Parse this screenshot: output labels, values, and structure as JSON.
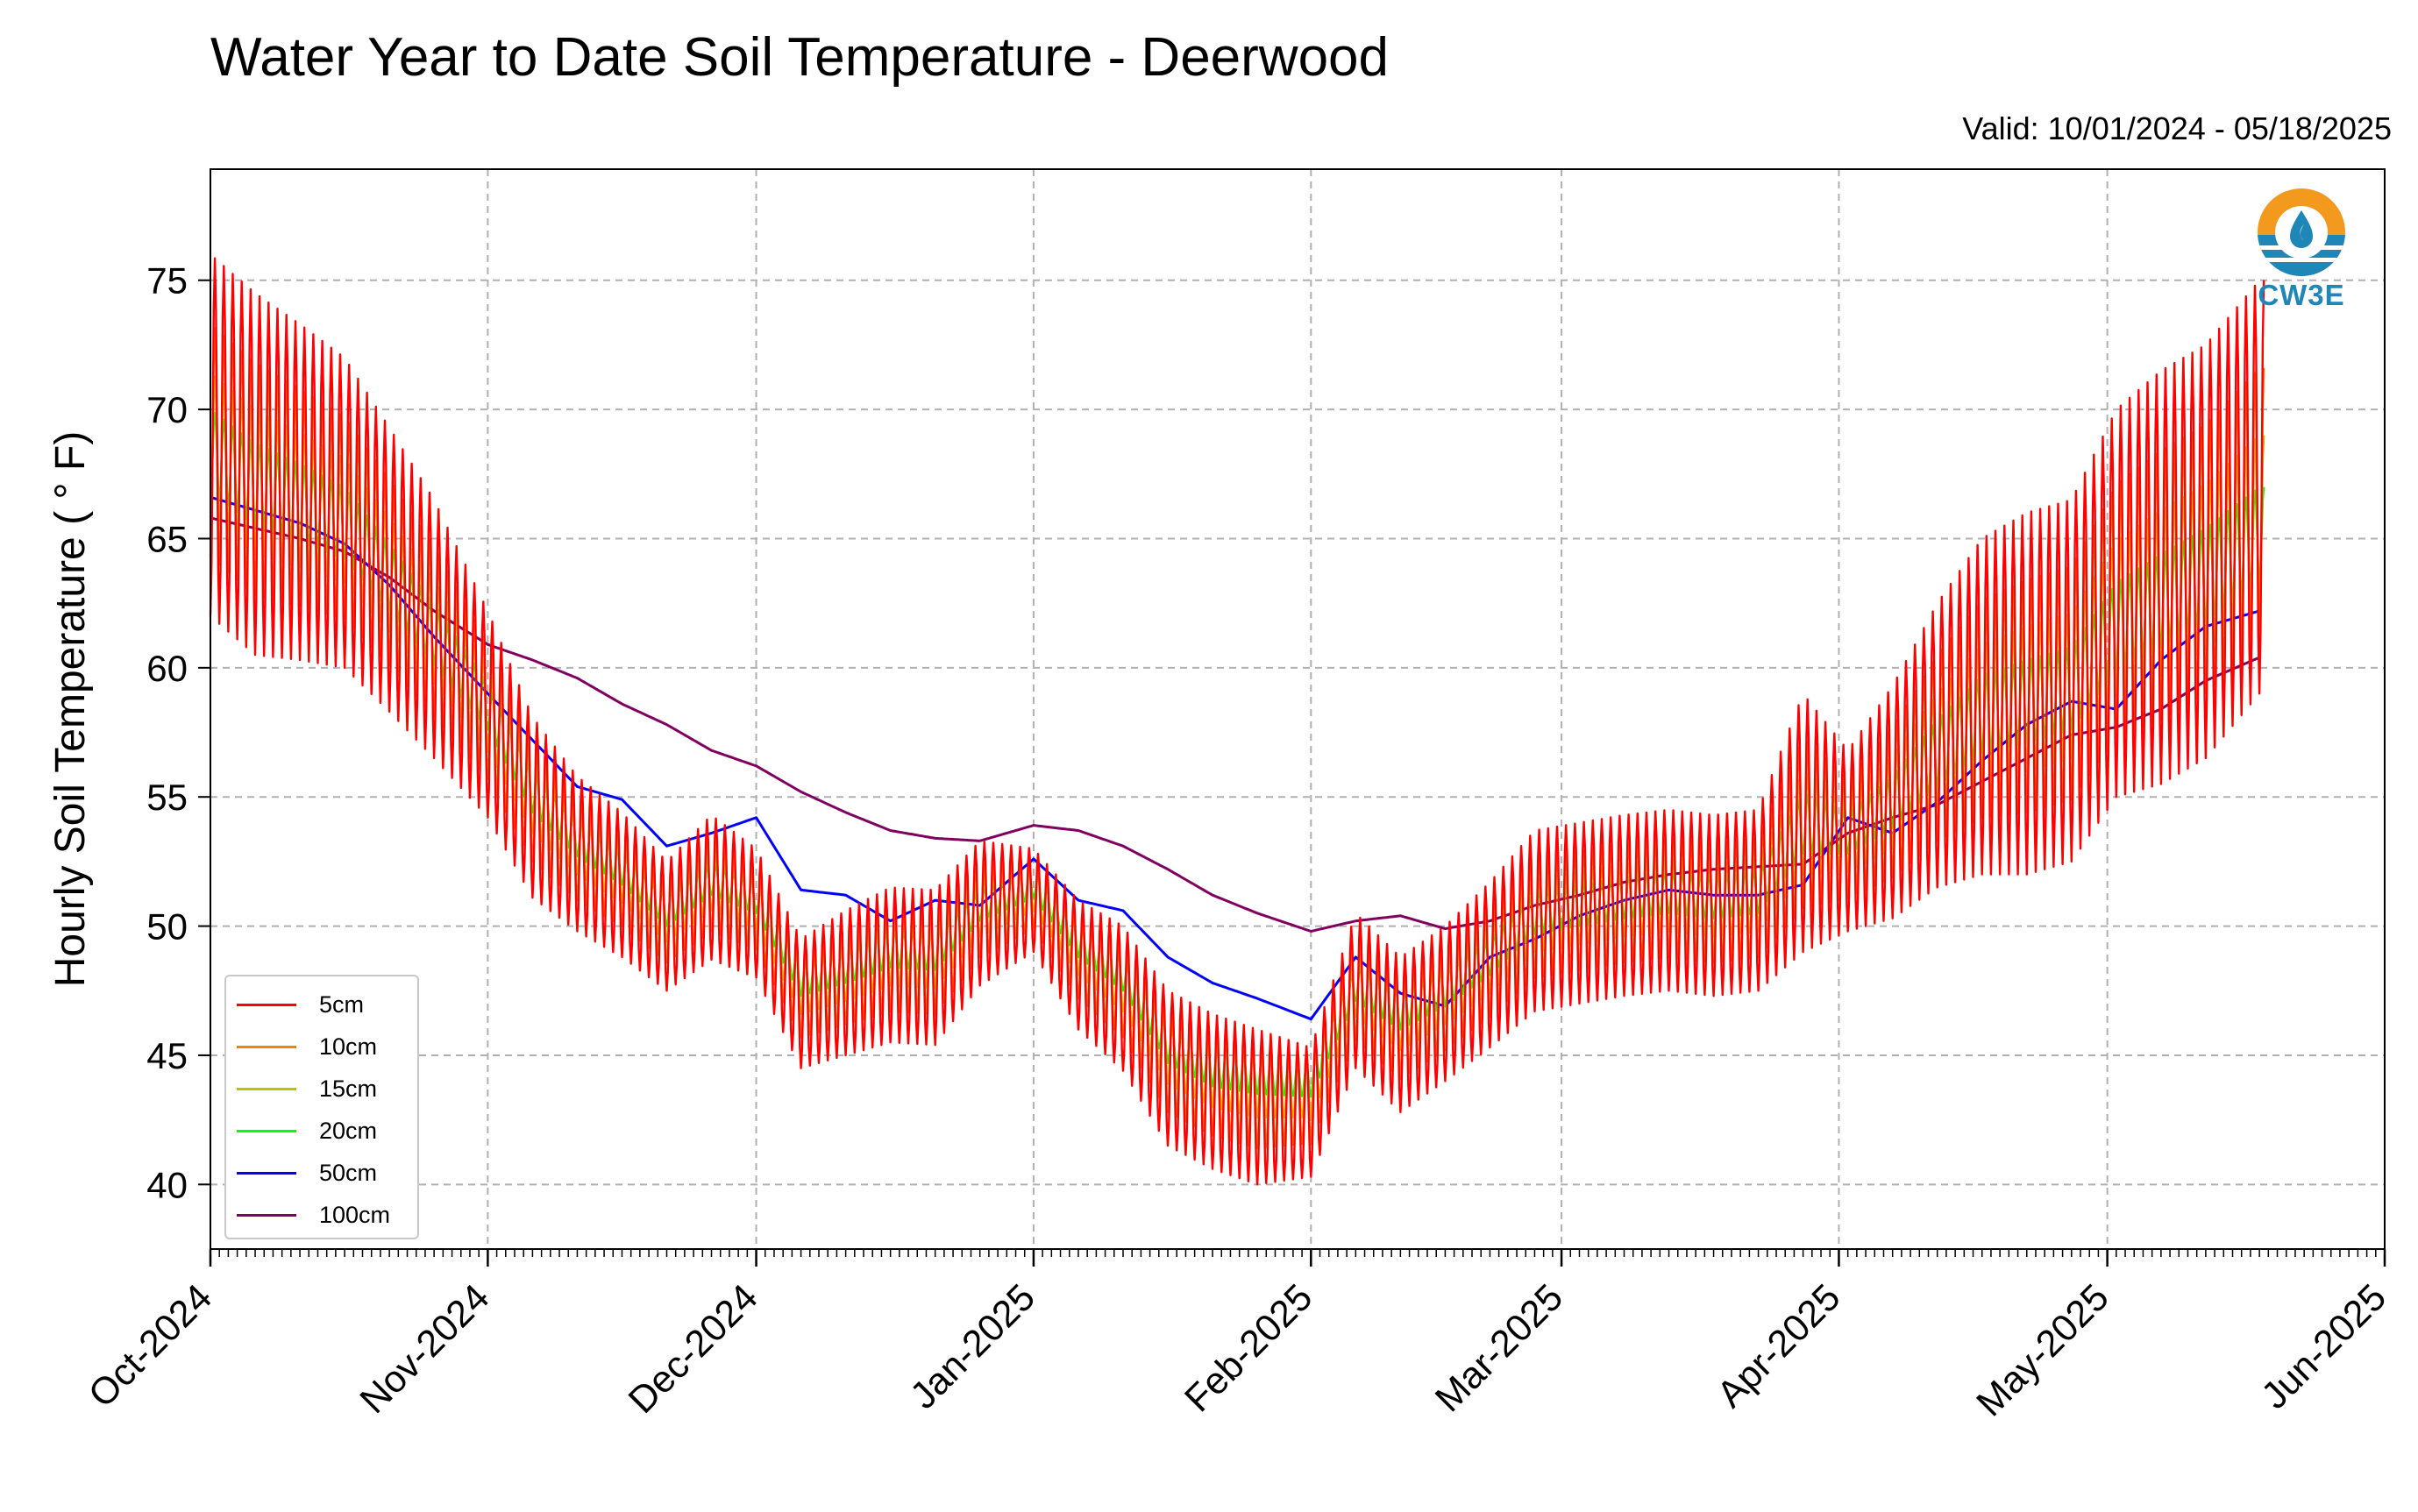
{
  "header": {
    "title": "Water Year to Date Soil Temperature - Deerwood",
    "valid": "Valid: 10/01/2024 - 05/18/2025",
    "logo_text": "CW3E"
  },
  "chart_data": {
    "type": "line",
    "ylabel": "Hourly Soil Temperature ( ° F)",
    "ylim": [
      37.5,
      79.3
    ],
    "yticks": [
      40,
      45,
      50,
      55,
      60,
      65,
      70,
      75
    ],
    "xlim": [
      "2024-10-01",
      "2025-06-01"
    ],
    "xticks": [
      {
        "date": "2024-10-01",
        "label": "Oct-2024"
      },
      {
        "date": "2024-11-01",
        "label": "Nov-2024"
      },
      {
        "date": "2024-12-01",
        "label": "Dec-2024"
      },
      {
        "date": "2025-01-01",
        "label": "Jan-2025"
      },
      {
        "date": "2025-02-01",
        "label": "Feb-2025"
      },
      {
        "date": "2025-03-01",
        "label": "Mar-2025"
      },
      {
        "date": "2025-04-01",
        "label": "Apr-2025"
      },
      {
        "date": "2025-05-01",
        "label": "May-2025"
      },
      {
        "date": "2025-06-01",
        "label": "Jun-2025"
      }
    ],
    "grid": true,
    "legend": "lower-left",
    "series": [
      {
        "name": "5cm",
        "color": "#ff0000",
        "x": [
          "2024-10-01",
          "2024-10-06",
          "2024-10-11",
          "2024-10-16",
          "2024-10-21",
          "2024-10-26",
          "2024-11-01",
          "2024-11-06",
          "2024-11-11",
          "2024-11-16",
          "2024-11-21",
          "2024-11-26",
          "2024-12-01",
          "2024-12-06",
          "2024-12-11",
          "2024-12-16",
          "2024-12-21",
          "2024-12-26",
          "2025-01-01",
          "2025-01-06",
          "2025-01-11",
          "2025-01-16",
          "2025-01-21",
          "2025-01-26",
          "2025-02-01",
          "2025-02-06",
          "2025-02-11",
          "2025-02-16",
          "2025-02-21",
          "2025-02-26",
          "2025-03-03",
          "2025-03-08",
          "2025-03-13",
          "2025-03-18",
          "2025-03-23",
          "2025-03-28",
          "2025-04-02",
          "2025-04-07",
          "2025-04-12",
          "2025-04-17",
          "2025-04-22",
          "2025-04-27",
          "2025-05-02",
          "2025-05-07",
          "2025-05-12",
          "2025-05-18"
        ],
        "values": [
          69.0,
          67.5,
          66.8,
          66.0,
          63.8,
          61.5,
          58.2,
          54.6,
          52.8,
          51.6,
          50.0,
          51.5,
          50.5,
          47.0,
          47.8,
          48.5,
          48.4,
          50.5,
          51.0,
          48.5,
          47.2,
          44.5,
          43.6,
          43.0,
          42.8,
          47.5,
          45.8,
          47.0,
          48.5,
          50.2,
          50.5,
          50.8,
          51.0,
          50.8,
          51.0,
          54.0,
          53.3,
          54.8,
          57.0,
          58.5,
          59.0,
          59.5,
          62.5,
          63.5,
          64.5,
          67.0
        ],
        "amplitude": [
          7.0,
          7.0,
          6.5,
          6.0,
          5.5,
          5.0,
          4.0,
          3.5,
          3.0,
          2.8,
          2.5,
          2.8,
          2.5,
          2.5,
          2.8,
          3.0,
          3.0,
          2.8,
          2.0,
          2.5,
          2.8,
          3.0,
          3.0,
          3.0,
          2.5,
          3.0,
          3.0,
          3.0,
          3.2,
          3.5,
          3.5,
          3.5,
          3.5,
          3.5,
          3.5,
          5.0,
          3.5,
          4.5,
          5.5,
          6.5,
          7.0,
          7.0,
          7.5,
          8.0,
          8.0,
          8.0
        ]
      },
      {
        "name": "10cm",
        "color": "#ff8000",
        "x": [
          "2024-10-01",
          "2024-10-06",
          "2024-10-11",
          "2024-10-16",
          "2024-10-21",
          "2024-10-26",
          "2024-11-01",
          "2024-11-06",
          "2024-11-11",
          "2024-11-16",
          "2024-11-21",
          "2024-11-26",
          "2024-12-01",
          "2024-12-06",
          "2024-12-11",
          "2024-12-16",
          "2024-12-21",
          "2024-12-26",
          "2025-01-01",
          "2025-01-06",
          "2025-01-11",
          "2025-01-16",
          "2025-01-21",
          "2025-01-26",
          "2025-02-01",
          "2025-02-06",
          "2025-02-11",
          "2025-02-16",
          "2025-02-21",
          "2025-02-26",
          "2025-03-03",
          "2025-03-08",
          "2025-03-13",
          "2025-03-18",
          "2025-03-23",
          "2025-03-28",
          "2025-04-02",
          "2025-04-07",
          "2025-04-12",
          "2025-04-17",
          "2025-04-22",
          "2025-04-27",
          "2025-05-02",
          "2025-05-07",
          "2025-05-12",
          "2025-05-18"
        ],
        "values": [
          68.8,
          67.3,
          66.6,
          65.8,
          63.7,
          61.4,
          58.3,
          54.8,
          53.0,
          51.8,
          50.2,
          51.6,
          50.7,
          47.3,
          48.0,
          48.7,
          48.6,
          50.6,
          51.2,
          48.8,
          47.5,
          44.8,
          43.9,
          43.4,
          43.2,
          47.6,
          46.1,
          47.2,
          48.6,
          50.3,
          50.6,
          50.9,
          51.1,
          50.9,
          51.1,
          54.0,
          53.4,
          54.8,
          56.9,
          58.4,
          58.9,
          59.4,
          62.2,
          63.2,
          64.2,
          66.4
        ],
        "amplitude": [
          4.5,
          4.5,
          4.2,
          3.9,
          3.6,
          3.3,
          2.6,
          2.3,
          2.0,
          1.8,
          1.6,
          1.8,
          1.6,
          1.6,
          1.8,
          2.0,
          2.0,
          1.8,
          1.3,
          1.6,
          1.8,
          2.0,
          2.0,
          2.0,
          1.6,
          2.0,
          2.0,
          2.0,
          2.1,
          2.3,
          2.3,
          2.3,
          2.3,
          2.3,
          2.3,
          3.3,
          2.3,
          2.9,
          3.6,
          4.2,
          4.5,
          4.5,
          4.9,
          5.2,
          5.2,
          5.2
        ]
      },
      {
        "name": "15cm",
        "color": "#c6bf00",
        "x": [
          "2024-10-01",
          "2024-10-06",
          "2024-10-11",
          "2024-10-16",
          "2024-10-21",
          "2024-10-26",
          "2024-11-01",
          "2024-11-06",
          "2024-11-11",
          "2024-11-16",
          "2024-11-21",
          "2024-11-26",
          "2024-12-01",
          "2024-12-06",
          "2024-12-11",
          "2024-12-16",
          "2024-12-21",
          "2024-12-26",
          "2025-01-01",
          "2025-01-06",
          "2025-01-11",
          "2025-01-16",
          "2025-01-21",
          "2025-01-26",
          "2025-02-01",
          "2025-02-06",
          "2025-02-11",
          "2025-02-16",
          "2025-02-21",
          "2025-02-26",
          "2025-03-03",
          "2025-03-08",
          "2025-03-13",
          "2025-03-18",
          "2025-03-23",
          "2025-03-28",
          "2025-04-02",
          "2025-04-07",
          "2025-04-12",
          "2025-04-17",
          "2025-04-22",
          "2025-04-27",
          "2025-05-02",
          "2025-05-07",
          "2025-05-12",
          "2025-05-18"
        ],
        "values": [
          68.6,
          67.2,
          66.5,
          65.7,
          63.6,
          61.4,
          58.4,
          55.0,
          53.2,
          52.0,
          50.4,
          51.7,
          50.9,
          47.6,
          48.2,
          48.9,
          48.8,
          50.7,
          51.4,
          49.1,
          47.8,
          45.1,
          44.2,
          43.8,
          43.6,
          47.7,
          46.4,
          47.4,
          48.7,
          50.4,
          50.7,
          51.0,
          51.2,
          51.0,
          51.2,
          54.0,
          53.5,
          54.8,
          56.8,
          58.3,
          58.8,
          59.3,
          61.9,
          62.9,
          63.9,
          65.8
        ],
        "amplitude": [
          2.8,
          2.8,
          2.6,
          2.4,
          2.2,
          2.0,
          1.6,
          1.4,
          1.2,
          1.1,
          1.0,
          1.1,
          1.0,
          1.0,
          1.1,
          1.2,
          1.2,
          1.1,
          0.8,
          1.0,
          1.1,
          1.2,
          1.2,
          1.2,
          1.0,
          1.2,
          1.2,
          1.2,
          1.3,
          1.4,
          1.4,
          1.4,
          1.4,
          1.4,
          1.4,
          2.0,
          1.4,
          1.8,
          2.2,
          2.6,
          2.8,
          2.8,
          3.0,
          3.2,
          3.2,
          3.2
        ]
      },
      {
        "name": "20cm",
        "color": "#00ff00",
        "x": [
          "2024-10-01",
          "2024-10-06",
          "2024-10-11",
          "2024-10-16",
          "2024-10-21",
          "2024-10-26",
          "2024-11-01",
          "2024-11-06",
          "2024-11-11",
          "2024-11-16",
          "2024-11-21",
          "2024-11-26",
          "2024-12-01",
          "2024-12-06",
          "2024-12-11",
          "2024-12-16",
          "2024-12-21",
          "2024-12-26",
          "2025-01-01",
          "2025-01-06",
          "2025-01-11",
          "2025-01-16",
          "2025-01-21",
          "2025-01-26",
          "2025-02-01",
          "2025-02-06",
          "2025-02-11",
          "2025-02-16",
          "2025-02-21",
          "2025-02-26",
          "2025-03-03",
          "2025-03-08",
          "2025-03-13",
          "2025-03-18",
          "2025-03-23",
          "2025-03-28",
          "2025-04-02",
          "2025-04-07",
          "2025-04-12",
          "2025-04-17",
          "2025-04-22",
          "2025-04-27",
          "2025-05-02",
          "2025-05-07",
          "2025-05-12",
          "2025-05-18"
        ],
        "values": [
          68.4,
          67.1,
          66.4,
          65.6,
          63.5,
          61.3,
          58.5,
          55.2,
          53.4,
          52.2,
          50.6,
          51.8,
          51.1,
          47.9,
          48.4,
          49.1,
          49.0,
          50.8,
          51.6,
          49.4,
          48.1,
          45.4,
          44.5,
          44.2,
          44.0,
          47.8,
          46.7,
          47.6,
          48.8,
          50.5,
          50.8,
          51.1,
          51.3,
          51.1,
          51.3,
          54.0,
          53.6,
          54.8,
          56.7,
          58.2,
          58.7,
          59.2,
          61.6,
          62.6,
          63.6,
          65.2
        ],
        "amplitude": [
          1.6,
          1.6,
          1.5,
          1.4,
          1.3,
          1.2,
          0.9,
          0.8,
          0.7,
          0.6,
          0.6,
          0.6,
          0.6,
          0.6,
          0.6,
          0.7,
          0.7,
          0.6,
          0.5,
          0.6,
          0.6,
          0.7,
          0.7,
          0.7,
          0.6,
          0.7,
          0.7,
          0.7,
          0.7,
          0.8,
          0.8,
          0.8,
          0.8,
          0.8,
          0.8,
          1.2,
          0.8,
          1.0,
          1.3,
          1.5,
          1.6,
          1.6,
          1.7,
          1.8,
          1.8,
          1.8
        ]
      },
      {
        "name": "50cm",
        "color": "#0000ff",
        "x": [
          "2024-10-01",
          "2024-10-06",
          "2024-10-11",
          "2024-10-16",
          "2024-10-21",
          "2024-10-26",
          "2024-11-01",
          "2024-11-06",
          "2024-11-11",
          "2024-11-16",
          "2024-11-21",
          "2024-11-26",
          "2024-12-01",
          "2024-12-06",
          "2024-12-11",
          "2024-12-16",
          "2024-12-21",
          "2024-12-26",
          "2025-01-01",
          "2025-01-06",
          "2025-01-11",
          "2025-01-16",
          "2025-01-21",
          "2025-01-26",
          "2025-02-01",
          "2025-02-06",
          "2025-02-11",
          "2025-02-16",
          "2025-02-21",
          "2025-02-26",
          "2025-03-03",
          "2025-03-08",
          "2025-03-13",
          "2025-03-18",
          "2025-03-23",
          "2025-03-28",
          "2025-04-02",
          "2025-04-07",
          "2025-04-12",
          "2025-04-17",
          "2025-04-22",
          "2025-04-27",
          "2025-05-02",
          "2025-05-07",
          "2025-05-12",
          "2025-05-18"
        ],
        "values": [
          66.6,
          66.1,
          65.6,
          64.8,
          63.2,
          61.2,
          59.0,
          57.2,
          55.4,
          54.9,
          53.1,
          53.6,
          54.2,
          51.4,
          51.2,
          50.2,
          51.0,
          50.8,
          52.6,
          51.0,
          50.6,
          48.8,
          47.8,
          47.2,
          46.4,
          48.8,
          47.4,
          46.9,
          48.8,
          49.5,
          50.4,
          51.0,
          51.4,
          51.2,
          51.2,
          51.6,
          54.2,
          53.6,
          54.8,
          56.4,
          57.8,
          58.7,
          58.4,
          60.3,
          61.6,
          62.2
        ]
      },
      {
        "name": "100cm",
        "color": "#800060",
        "x": [
          "2024-10-01",
          "2024-10-06",
          "2024-10-11",
          "2024-10-16",
          "2024-10-21",
          "2024-10-26",
          "2024-11-01",
          "2024-11-06",
          "2024-11-11",
          "2024-11-16",
          "2024-11-21",
          "2024-11-26",
          "2024-12-01",
          "2024-12-06",
          "2024-12-11",
          "2024-12-16",
          "2024-12-21",
          "2024-12-26",
          "2025-01-01",
          "2025-01-06",
          "2025-01-11",
          "2025-01-16",
          "2025-01-21",
          "2025-01-26",
          "2025-02-01",
          "2025-02-06",
          "2025-02-11",
          "2025-02-16",
          "2025-02-21",
          "2025-02-26",
          "2025-03-03",
          "2025-03-08",
          "2025-03-13",
          "2025-03-18",
          "2025-03-23",
          "2025-03-28",
          "2025-04-02",
          "2025-04-07",
          "2025-04-12",
          "2025-04-17",
          "2025-04-22",
          "2025-04-27",
          "2025-05-02",
          "2025-05-07",
          "2025-05-12",
          "2025-05-18"
        ],
        "values": [
          65.8,
          65.4,
          65.0,
          64.5,
          63.5,
          62.2,
          60.9,
          60.3,
          59.6,
          58.6,
          57.8,
          56.8,
          56.2,
          55.2,
          54.4,
          53.7,
          53.4,
          53.3,
          53.9,
          53.7,
          53.1,
          52.2,
          51.2,
          50.5,
          49.8,
          50.2,
          50.4,
          49.9,
          50.2,
          50.8,
          51.2,
          51.7,
          52.0,
          52.2,
          52.3,
          52.4,
          53.6,
          54.2,
          54.7,
          55.6,
          56.5,
          57.4,
          57.7,
          58.4,
          59.5,
          60.4
        ]
      }
    ]
  }
}
